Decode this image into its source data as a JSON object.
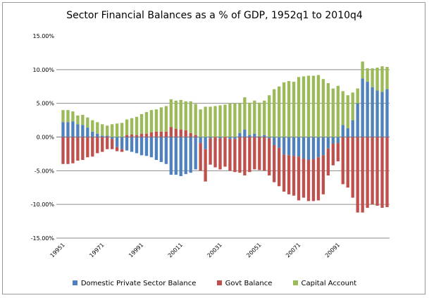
{
  "chart_data": {
    "type": "bar",
    "stacked": true,
    "title": "Sector Financial Balances as a % of GDP, 1952q1 to 2010q4",
    "xlabel": "",
    "ylabel": "",
    "ylim": [
      -15,
      15
    ],
    "yticks": [
      "15.00%",
      "10.00%",
      "5.00%",
      "0.00%",
      "-5.00%",
      "-10.00%",
      "-15.00%"
    ],
    "ytick_values": [
      15,
      10,
      5,
      0,
      -5,
      -10,
      -15
    ],
    "xtick_labels": [
      "19951",
      "19971",
      "19991",
      "20011",
      "20031",
      "20051",
      "20071",
      "20091"
    ],
    "xtick_every": 8,
    "grid": true,
    "legend": "bottom",
    "series": [
      {
        "name": "Domestic Private Sector Balance",
        "color": "#4F81BD",
        "values": [
          2.2,
          2.2,
          2.3,
          1.9,
          1.8,
          1.4,
          0.8,
          0.5,
          0.2,
          0.2,
          -0.3,
          -1.5,
          -1.8,
          -2.0,
          -2.2,
          -2.4,
          -2.7,
          -2.8,
          -3.0,
          -3.4,
          -3.7,
          -4.0,
          -5.6,
          -5.6,
          -5.8,
          -5.5,
          -5.3,
          -4.8,
          -0.9,
          -1.8,
          -0.2,
          0.0,
          -0.2,
          0.0,
          -0.3,
          -0.3,
          0.6,
          1.1,
          0.3,
          0.5,
          0.1,
          0.3,
          -0.2,
          -1.2,
          -1.6,
          -2.6,
          -2.7,
          -2.8,
          -2.9,
          -3.2,
          -3.4,
          -3.3,
          -3.0,
          -2.7,
          -1.7,
          -1.0,
          -0.9,
          1.8,
          1.3,
          2.5,
          5.0,
          8.7,
          8.2,
          7.4,
          6.9,
          6.7,
          7.1
        ]
      },
      {
        "name": "Govt Balance",
        "color": "#C0504D",
        "values": [
          -4.0,
          -4.0,
          -3.9,
          -3.5,
          -3.4,
          -3.0,
          -2.9,
          -2.4,
          -2.2,
          -1.8,
          -1.5,
          -0.6,
          -0.4,
          0.3,
          0.4,
          0.3,
          0.5,
          0.5,
          0.7,
          0.8,
          0.8,
          0.8,
          1.5,
          1.2,
          1.1,
          1.0,
          0.6,
          0.3,
          -4.1,
          -4.8,
          -3.9,
          -4.5,
          -4.6,
          -4.4,
          -4.7,
          -4.9,
          -5.3,
          -5.7,
          -5.2,
          -4.8,
          -4.9,
          -5.0,
          -5.5,
          -5.5,
          -5.7,
          -5.5,
          -5.8,
          -5.9,
          -6.5,
          -5.8,
          -6.1,
          -6.2,
          -6.4,
          -5.8,
          -4.0,
          -3.2,
          -2.7,
          -7.0,
          -7.5,
          -9.0,
          -11.2,
          -11.2,
          -10.5,
          -10.0,
          -10.2,
          -10.5,
          -10.4
        ]
      },
      {
        "name": "Capital Account",
        "color": "#9BBB59",
        "values": [
          1.8,
          1.8,
          1.5,
          1.3,
          1.5,
          1.5,
          1.7,
          1.7,
          1.7,
          1.5,
          1.9,
          2.0,
          2.1,
          2.3,
          2.4,
          2.7,
          2.9,
          3.2,
          3.3,
          3.3,
          3.6,
          3.8,
          4.1,
          4.2,
          4.4,
          4.3,
          4.7,
          4.6,
          4.1,
          4.5,
          4.5,
          4.6,
          4.7,
          4.8,
          5.0,
          5.0,
          4.4,
          4.8,
          4.8,
          4.9,
          5.0,
          5.1,
          6.2,
          7.1,
          7.5,
          8.1,
          8.3,
          8.2,
          8.9,
          9.0,
          9.1,
          9.1,
          9.2,
          8.6,
          8.0,
          7.2,
          7.6,
          5.0,
          4.9,
          4.1,
          2.2,
          2.5,
          2.0,
          2.8,
          3.4,
          3.8,
          3.3
        ]
      }
    ]
  }
}
